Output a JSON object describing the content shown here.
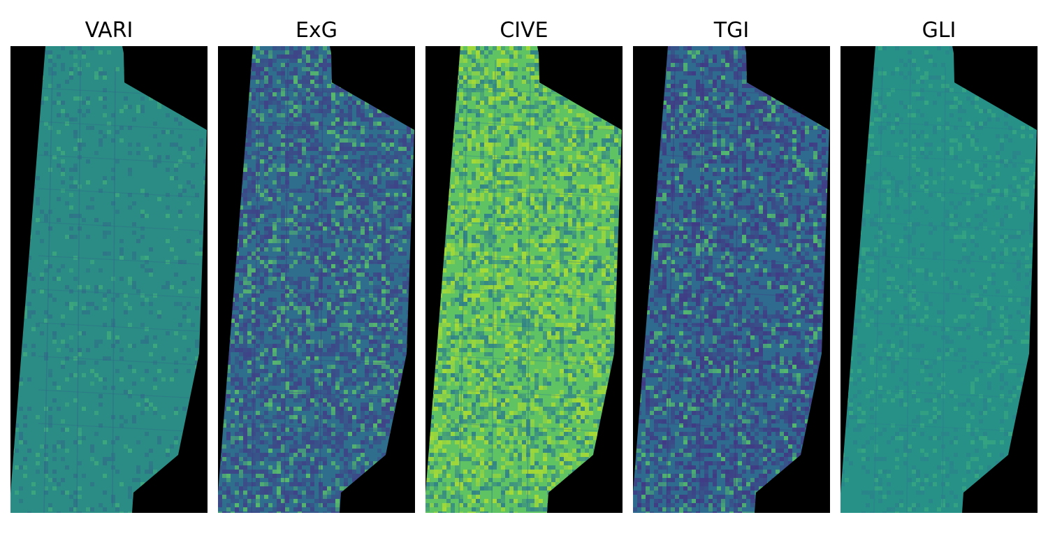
{
  "figure": {
    "colormap": "viridis",
    "background_color": "#000000",
    "panels": [
      {
        "title": "VARI",
        "base_color": "#2a8c84",
        "low_color": "#33628b",
        "high_color": "#4cbd78",
        "noise_strength": 0.35,
        "low_fraction": 0.1,
        "high_fraction": 0.06
      },
      {
        "title": "ExG",
        "base_color": "#2f6e8d",
        "low_color": "#413c86",
        "high_color": "#60c768",
        "noise_strength": 0.9,
        "low_fraction": 0.42,
        "high_fraction": 0.16
      },
      {
        "title": "CIVE",
        "base_color": "#5fc364",
        "low_color": "#2a788e",
        "high_color": "#b5de2b",
        "noise_strength": 0.9,
        "low_fraction": 0.3,
        "high_fraction": 0.25
      },
      {
        "title": "TGI",
        "base_color": "#2f6b8e",
        "low_color": "#433483",
        "high_color": "#5ac46a",
        "noise_strength": 0.95,
        "low_fraction": 0.45,
        "high_fraction": 0.12
      },
      {
        "title": "GLI",
        "base_color": "#279087",
        "low_color": "#2e7a8e",
        "high_color": "#43b87c",
        "noise_strength": 0.3,
        "low_fraction": 0.12,
        "high_fraction": 0.1
      }
    ]
  }
}
